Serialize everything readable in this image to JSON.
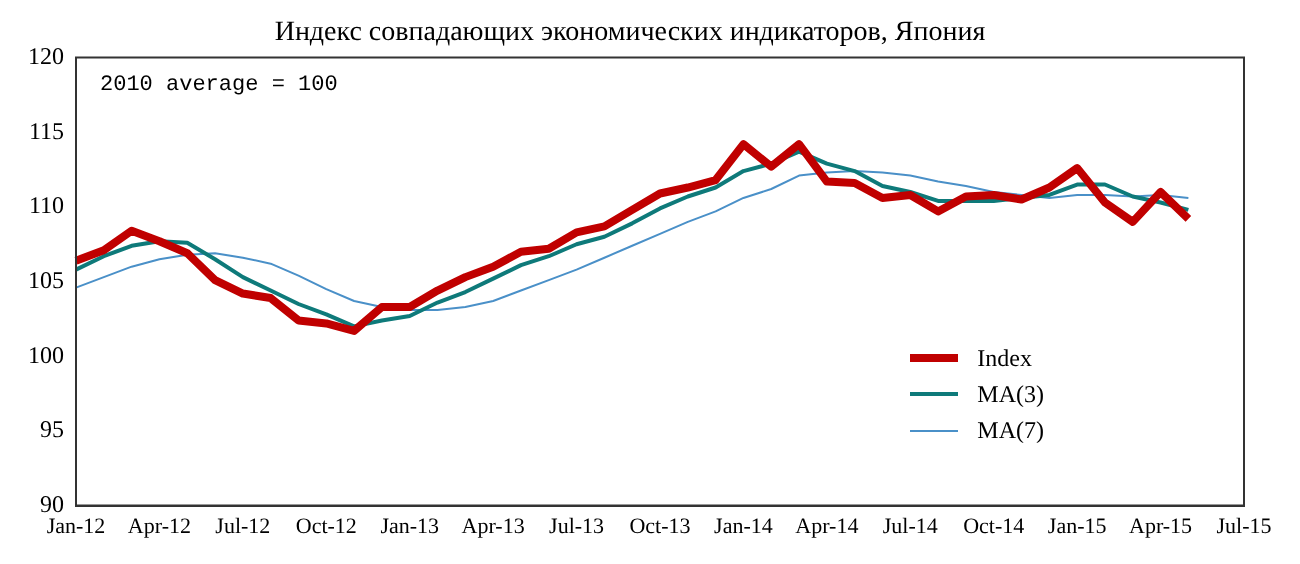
{
  "chart_data": {
    "type": "line",
    "title": "Индекс совпадающих экономических индикаторов, Япония",
    "categories": [
      "Jan-12",
      null,
      null,
      "Apr-12",
      null,
      null,
      "Jul-12",
      null,
      null,
      "Oct-12",
      null,
      null,
      "Jan-13",
      null,
      null,
      "Apr-13",
      null,
      null,
      "Jul-13",
      null,
      null,
      "Oct-13",
      null,
      null,
      "Jan-14",
      null,
      null,
      "Apr-14",
      null,
      null,
      "Jul-14",
      null,
      null,
      "Oct-14",
      null,
      null,
      "Jan-15",
      null,
      null,
      "Apr-15",
      null,
      null,
      "Jul-15"
    ],
    "series": [
      {
        "name": "Index",
        "color": "#c00000",
        "values": [
          106.4,
          107.1,
          108.4,
          107.7,
          106.9,
          105.1,
          104.2,
          103.9,
          102.4,
          102.2,
          101.7,
          103.3,
          103.3,
          104.4,
          105.3,
          106.0,
          107.0,
          107.2,
          108.3,
          108.7,
          109.8,
          110.9,
          111.3,
          111.8,
          114.2,
          112.7,
          114.2,
          111.7,
          111.6,
          110.6,
          110.8,
          109.7,
          110.7,
          110.8,
          110.5,
          111.3,
          112.6,
          110.3,
          109.0,
          111.0,
          109.2,
          null,
          null
        ]
      },
      {
        "name": "MA(3)",
        "color": "#0e7a7a",
        "values": [
          105.8,
          106.7,
          107.4,
          107.7,
          107.6,
          106.5,
          105.3,
          104.4,
          103.5,
          102.8,
          102.0,
          102.4,
          102.7,
          103.6,
          104.3,
          105.2,
          106.1,
          106.7,
          107.5,
          108.0,
          108.9,
          109.9,
          110.7,
          111.3,
          112.4,
          112.9,
          113.7,
          112.9,
          112.4,
          111.4,
          111.0,
          110.4,
          110.4,
          110.4,
          110.6,
          110.8,
          111.5,
          111.5,
          110.7,
          110.3,
          109.8,
          null,
          null
        ]
      },
      {
        "name": "MA(7)",
        "color": "#4a90c8",
        "values": [
          104.6,
          105.3,
          106.0,
          106.5,
          106.8,
          106.9,
          106.6,
          106.2,
          105.4,
          104.5,
          103.7,
          103.3,
          103.1,
          103.1,
          103.3,
          103.7,
          104.4,
          105.1,
          105.8,
          106.6,
          107.4,
          108.2,
          109.0,
          109.7,
          110.6,
          111.2,
          112.1,
          112.3,
          112.4,
          112.3,
          112.1,
          111.7,
          111.4,
          111.0,
          110.8,
          110.6,
          110.8,
          110.8,
          110.7,
          110.8,
          110.6,
          null,
          null
        ]
      }
    ],
    "ylim": [
      90,
      120
    ],
    "yticks": [
      90,
      95,
      100,
      105,
      110,
      115,
      120
    ],
    "grid": false,
    "legend": "bottom right",
    "marker": "none",
    "line_style": "solid",
    "annotations": [
      "2010 average = 100"
    ]
  }
}
